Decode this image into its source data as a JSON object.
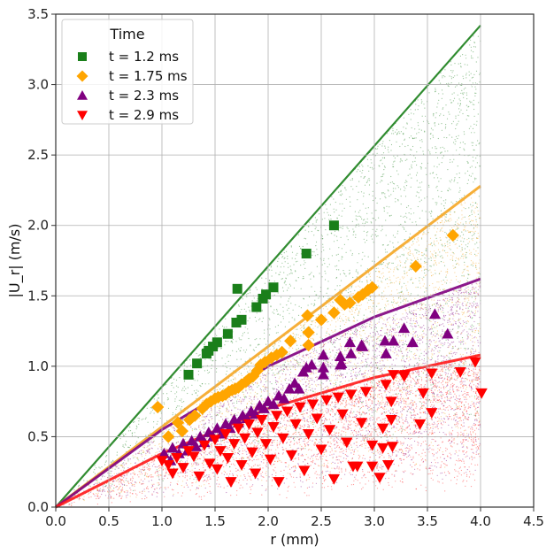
{
  "chart_data": {
    "type": "scatter",
    "title": "",
    "xlabel": "r (mm)",
    "ylabel": "|U_r| (m/s)",
    "xlim": [
      0.0,
      4.5
    ],
    "ylim": [
      0.0,
      3.5
    ],
    "xticks": [
      "0.0",
      "0.5",
      "1.0",
      "1.5",
      "2.0",
      "2.5",
      "3.0",
      "3.5",
      "4.0",
      "4.5"
    ],
    "yticks": [
      "0.0",
      "0.5",
      "1.0",
      "1.5",
      "2.0",
      "2.5",
      "3.0",
      "3.5"
    ],
    "grid": true,
    "legend": {
      "title": "Time",
      "placement": "top-left",
      "entries": [
        "t = 1.2 ms",
        "t = 1.75 ms",
        "t = 2.3 ms",
        "t = 2.9 ms"
      ]
    },
    "background_clouds": [
      {
        "name": "t = 1.2 ms cloud",
        "color": "#1a7f1a",
        "upper_edge": [
          [
            0.0,
            0.0
          ],
          [
            4.0,
            3.42
          ]
        ],
        "lower_edge": [
          [
            0.0,
            0.0
          ],
          [
            4.0,
            0.55
          ]
        ]
      },
      {
        "name": "t = 1.75 ms cloud",
        "color": "#f5a623",
        "upper_edge": [
          [
            0.0,
            0.0
          ],
          [
            4.0,
            2.28
          ]
        ],
        "lower_edge": [
          [
            0.0,
            0.0
          ],
          [
            4.0,
            0.3
          ]
        ]
      },
      {
        "name": "t = 2.3 ms cloud",
        "color": "#800080",
        "upper_edge": [
          [
            0.0,
            0.0
          ],
          [
            1.0,
            0.55
          ],
          [
            2.0,
            1.0
          ],
          [
            3.0,
            1.35
          ],
          [
            4.0,
            1.62
          ]
        ],
        "lower_edge": [
          [
            0.0,
            0.0
          ],
          [
            4.0,
            0.2
          ]
        ]
      },
      {
        "name": "t = 2.9 ms cloud",
        "color": "#ff1a1a",
        "upper_edge": [
          [
            0.0,
            0.0
          ],
          [
            1.0,
            0.38
          ],
          [
            2.0,
            0.7
          ],
          [
            3.0,
            0.92
          ],
          [
            4.0,
            1.08
          ]
        ],
        "lower_edge": [
          [
            0.0,
            0.0
          ],
          [
            4.0,
            0.12
          ]
        ]
      }
    ],
    "series": [
      {
        "name": "t = 1.2 ms",
        "marker": "square",
        "color": "#1a7f1a",
        "points": [
          [
            1.25,
            0.94
          ],
          [
            1.33,
            1.02
          ],
          [
            1.42,
            1.09
          ],
          [
            1.44,
            1.11
          ],
          [
            1.48,
            1.14
          ],
          [
            1.52,
            1.17
          ],
          [
            1.62,
            1.23
          ],
          [
            1.7,
            1.31
          ],
          [
            1.75,
            1.33
          ],
          [
            1.71,
            1.55
          ],
          [
            1.89,
            1.42
          ],
          [
            1.95,
            1.48
          ],
          [
            1.98,
            1.51
          ],
          [
            2.05,
            1.56
          ],
          [
            2.36,
            1.8
          ],
          [
            2.62,
            2.0
          ]
        ]
      },
      {
        "name": "t = 1.75 ms",
        "marker": "diamond",
        "color": "#ffa500",
        "points": [
          [
            0.96,
            0.71
          ],
          [
            1.06,
            0.5
          ],
          [
            1.15,
            0.6
          ],
          [
            1.19,
            0.54
          ],
          [
            1.26,
            0.62
          ],
          [
            1.31,
            0.65
          ],
          [
            1.38,
            0.7
          ],
          [
            1.42,
            0.73
          ],
          [
            1.46,
            0.75
          ],
          [
            1.5,
            0.77
          ],
          [
            1.53,
            0.78
          ],
          [
            1.57,
            0.79
          ],
          [
            1.6,
            0.8
          ],
          [
            1.63,
            0.82
          ],
          [
            1.66,
            0.83
          ],
          [
            1.69,
            0.84
          ],
          [
            1.72,
            0.85
          ],
          [
            1.75,
            0.87
          ],
          [
            1.79,
            0.89
          ],
          [
            1.82,
            0.91
          ],
          [
            1.86,
            0.93
          ],
          [
            1.9,
            0.97
          ],
          [
            1.93,
            1.01
          ],
          [
            1.97,
            1.03
          ],
          [
            2.03,
            1.06
          ],
          [
            2.08,
            1.08
          ],
          [
            2.13,
            1.1
          ],
          [
            2.21,
            1.18
          ],
          [
            2.37,
            1.36
          ],
          [
            2.38,
            1.24
          ],
          [
            2.38,
            1.15
          ],
          [
            2.5,
            1.33
          ],
          [
            2.62,
            1.38
          ],
          [
            2.68,
            1.47
          ],
          [
            2.72,
            1.44
          ],
          [
            2.77,
            1.45
          ],
          [
            2.85,
            1.49
          ],
          [
            2.89,
            1.51
          ],
          [
            2.94,
            1.54
          ],
          [
            2.98,
            1.56
          ],
          [
            3.39,
            1.71
          ],
          [
            3.74,
            1.93
          ]
        ]
      },
      {
        "name": "t = 2.3 ms",
        "marker": "triangle-up",
        "color": "#800080",
        "points": [
          [
            1.02,
            0.38
          ],
          [
            1.08,
            0.33
          ],
          [
            1.1,
            0.42
          ],
          [
            1.16,
            0.38
          ],
          [
            1.2,
            0.45
          ],
          [
            1.24,
            0.4
          ],
          [
            1.28,
            0.47
          ],
          [
            1.32,
            0.43
          ],
          [
            1.36,
            0.5
          ],
          [
            1.4,
            0.46
          ],
          [
            1.44,
            0.53
          ],
          [
            1.48,
            0.5
          ],
          [
            1.52,
            0.56
          ],
          [
            1.56,
            0.52
          ],
          [
            1.6,
            0.59
          ],
          [
            1.64,
            0.56
          ],
          [
            1.68,
            0.62
          ],
          [
            1.72,
            0.6
          ],
          [
            1.76,
            0.65
          ],
          [
            1.8,
            0.63
          ],
          [
            1.84,
            0.68
          ],
          [
            1.88,
            0.66
          ],
          [
            1.92,
            0.72
          ],
          [
            1.96,
            0.7
          ],
          [
            2.0,
            0.75
          ],
          [
            2.05,
            0.73
          ],
          [
            2.1,
            0.79
          ],
          [
            2.15,
            0.77
          ],
          [
            2.2,
            0.84
          ],
          [
            2.25,
            0.88
          ],
          [
            2.29,
            0.84
          ],
          [
            2.33,
            0.96
          ],
          [
            2.36,
            0.99
          ],
          [
            2.41,
            1.01
          ],
          [
            2.52,
            1.08
          ],
          [
            2.52,
            0.99
          ],
          [
            2.52,
            0.94
          ],
          [
            2.68,
            1.07
          ],
          [
            2.68,
            1.01
          ],
          [
            2.69,
            1.02
          ],
          [
            2.77,
            1.17
          ],
          [
            2.78,
            1.09
          ],
          [
            2.88,
            1.15
          ],
          [
            2.89,
            1.14
          ],
          [
            3.1,
            1.18
          ],
          [
            3.11,
            1.09
          ],
          [
            3.18,
            1.18
          ],
          [
            3.28,
            1.27
          ],
          [
            3.36,
            1.17
          ],
          [
            3.57,
            1.37
          ],
          [
            3.69,
            1.23
          ]
        ]
      },
      {
        "name": "t = 2.9 ms",
        "marker": "triangle-down",
        "color": "#ff0000",
        "points": [
          [
            1.0,
            0.33
          ],
          [
            1.06,
            0.3
          ],
          [
            1.1,
            0.24
          ],
          [
            1.14,
            0.35
          ],
          [
            1.2,
            0.28
          ],
          [
            1.25,
            0.4
          ],
          [
            1.3,
            0.36
          ],
          [
            1.35,
            0.22
          ],
          [
            1.4,
            0.44
          ],
          [
            1.45,
            0.31
          ],
          [
            1.5,
            0.48
          ],
          [
            1.52,
            0.27
          ],
          [
            1.55,
            0.4
          ],
          [
            1.6,
            0.52
          ],
          [
            1.62,
            0.35
          ],
          [
            1.65,
            0.18
          ],
          [
            1.68,
            0.45
          ],
          [
            1.72,
            0.56
          ],
          [
            1.75,
            0.3
          ],
          [
            1.78,
            0.49
          ],
          [
            1.82,
            0.59
          ],
          [
            1.85,
            0.39
          ],
          [
            1.88,
            0.24
          ],
          [
            1.9,
            0.53
          ],
          [
            1.94,
            0.62
          ],
          [
            1.98,
            0.45
          ],
          [
            2.02,
            0.34
          ],
          [
            2.05,
            0.57
          ],
          [
            2.08,
            0.65
          ],
          [
            2.1,
            0.18
          ],
          [
            2.14,
            0.49
          ],
          [
            2.18,
            0.68
          ],
          [
            2.22,
            0.37
          ],
          [
            2.26,
            0.59
          ],
          [
            2.3,
            0.71
          ],
          [
            2.34,
            0.26
          ],
          [
            2.38,
            0.52
          ],
          [
            2.42,
            0.73
          ],
          [
            2.46,
            0.63
          ],
          [
            2.5,
            0.41
          ],
          [
            2.55,
            0.76
          ],
          [
            2.58,
            0.55
          ],
          [
            2.62,
            0.2
          ],
          [
            2.66,
            0.78
          ],
          [
            2.7,
            0.66
          ],
          [
            2.74,
            0.46
          ],
          [
            2.78,
            0.8
          ],
          [
            2.8,
            0.29
          ],
          [
            2.84,
            0.29
          ],
          [
            2.88,
            0.6
          ],
          [
            2.92,
            0.82
          ],
          [
            2.98,
            0.44
          ],
          [
            2.98,
            0.29
          ],
          [
            3.05,
            0.21
          ],
          [
            3.08,
            0.56
          ],
          [
            3.08,
            0.42
          ],
          [
            3.11,
            0.87
          ],
          [
            3.13,
            0.3
          ],
          [
            3.16,
            0.75
          ],
          [
            3.16,
            0.62
          ],
          [
            3.17,
            0.43
          ],
          [
            3.18,
            0.94
          ],
          [
            3.28,
            0.93
          ],
          [
            3.29,
            0.94
          ],
          [
            3.43,
            0.59
          ],
          [
            3.46,
            0.81
          ],
          [
            3.54,
            0.95
          ],
          [
            3.54,
            0.67
          ],
          [
            3.81,
            0.96
          ],
          [
            3.95,
            1.03
          ],
          [
            4.01,
            0.81
          ]
        ]
      }
    ]
  }
}
